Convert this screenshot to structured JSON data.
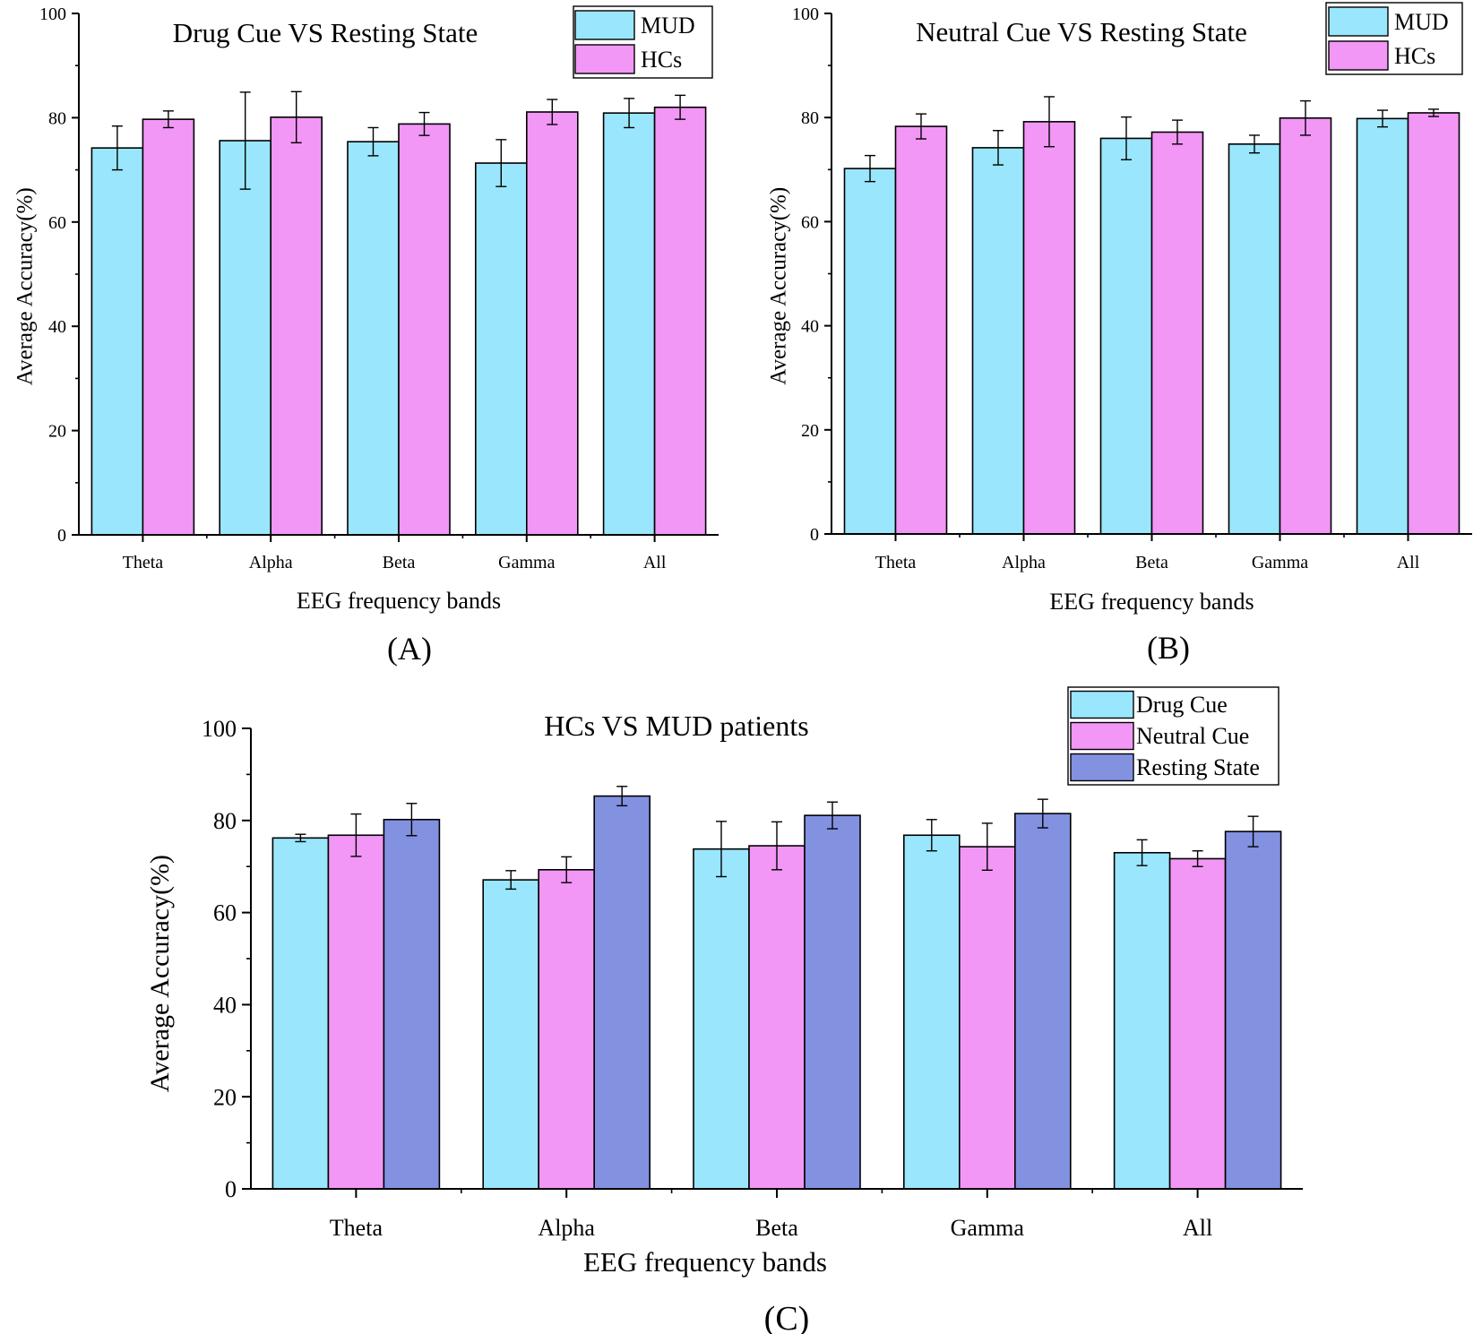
{
  "colors": {
    "cyan": "#9AE6FC",
    "pink": "#F297F5",
    "purple": "#8391E1",
    "axis": "#000000"
  },
  "chart_data": [
    {
      "type": "bar",
      "panel_label": "(A)",
      "title": "Drug Cue VS Resting State",
      "xlabel": "EEG frequency bands",
      "ylabel": "Average Accuracy(%)",
      "ylim": [
        0,
        100
      ],
      "yticks": [
        "0",
        "20",
        "40",
        "60",
        "80",
        "100"
      ],
      "categories": [
        "Theta",
        "Alpha",
        "Beta",
        "Gamma",
        "All"
      ],
      "legend_position": "top-right",
      "series": [
        {
          "name": "MUD",
          "color": "#9AE6FC",
          "values": [
            74.2,
            75.6,
            75.4,
            71.3,
            80.9
          ],
          "errors": [
            4.2,
            9.3,
            2.7,
            4.5,
            2.8
          ]
        },
        {
          "name": "HCs",
          "color": "#F297F5",
          "values": [
            79.7,
            80.1,
            78.8,
            81.1,
            82.0
          ],
          "errors": [
            1.6,
            4.9,
            2.2,
            2.4,
            2.3
          ]
        }
      ]
    },
    {
      "type": "bar",
      "panel_label": "(B)",
      "title": "Neutral Cue VS Resting State",
      "xlabel": "EEG frequency bands",
      "ylabel": "Average Accuracy(%)",
      "ylim": [
        0,
        100
      ],
      "yticks": [
        "0",
        "20",
        "40",
        "60",
        "80",
        "100"
      ],
      "categories": [
        "Theta",
        "Alpha",
        "Beta",
        "Gamma",
        "All"
      ],
      "legend_position": "top-right",
      "series": [
        {
          "name": "MUD",
          "color": "#9AE6FC",
          "values": [
            70.2,
            74.2,
            76.0,
            74.9,
            79.8
          ],
          "errors": [
            2.5,
            3.3,
            4.1,
            1.7,
            1.6
          ]
        },
        {
          "name": "HCs",
          "color": "#F297F5",
          "values": [
            78.3,
            79.2,
            77.2,
            79.9,
            80.9
          ],
          "errors": [
            2.4,
            4.8,
            2.3,
            3.3,
            0.7
          ]
        }
      ]
    },
    {
      "type": "bar",
      "panel_label": "(C)",
      "title": "HCs VS MUD patients",
      "xlabel": "EEG frequency bands",
      "ylabel": "Average Accuracy(%)",
      "ylim": [
        0,
        100
      ],
      "yticks": [
        "0",
        "20",
        "40",
        "60",
        "80",
        "100"
      ],
      "categories": [
        "Theta",
        "Alpha",
        "Beta",
        "Gamma",
        "All"
      ],
      "legend_position": "top-right",
      "series": [
        {
          "name": "Drug Cue",
          "color": "#9AE6FC",
          "values": [
            76.2,
            67.1,
            73.8,
            76.8,
            73.0
          ],
          "errors": [
            0.8,
            2.0,
            6.0,
            3.4,
            2.8
          ]
        },
        {
          "name": "Neutral Cue",
          "color": "#F297F5",
          "values": [
            76.8,
            69.3,
            74.5,
            74.3,
            71.7
          ],
          "errors": [
            4.6,
            2.8,
            5.2,
            5.1,
            1.7
          ]
        },
        {
          "name": "Resting State",
          "color": "#8391E1",
          "values": [
            80.2,
            85.3,
            81.1,
            81.5,
            77.6
          ],
          "errors": [
            3.5,
            2.1,
            2.9,
            3.1,
            3.3
          ]
        }
      ]
    }
  ]
}
